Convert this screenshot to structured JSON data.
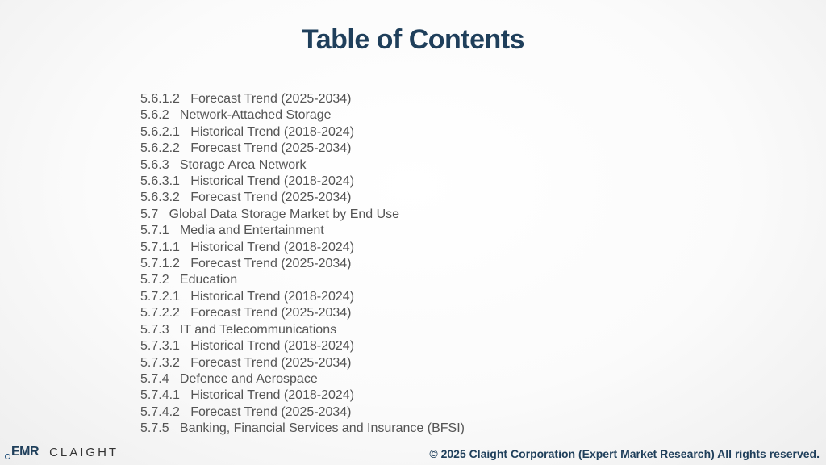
{
  "title": "Table of Contents",
  "toc_items": [
    "5.6.1.2   Forecast Trend (2025-2034)",
    "5.6.2   Network-Attached Storage",
    "5.6.2.1   Historical Trend (2018-2024)",
    "5.6.2.2   Forecast Trend (2025-2034)",
    "5.6.3   Storage Area Network",
    "5.6.3.1   Historical Trend (2018-2024)",
    "5.6.3.2   Forecast Trend (2025-2034)",
    "5.7   Global Data Storage Market by End Use",
    "5.7.1   Media and Entertainment",
    "5.7.1.1   Historical Trend (2018-2024)",
    "5.7.1.2   Forecast Trend (2025-2034)",
    "5.7.2   Education",
    "5.7.2.1   Historical Trend (2018-2024)",
    "5.7.2.2   Forecast Trend (2025-2034)",
    "5.7.3   IT and Telecommunications",
    "5.7.3.1   Historical Trend (2018-2024)",
    "5.7.3.2   Forecast Trend (2025-2034)",
    "5.7.4   Defence and Aerospace",
    "5.7.4.1   Historical Trend (2018-2024)",
    "5.7.4.2   Forecast Trend (2025-2034)",
    "5.7.5   Banking, Financial Services and Insurance (BFSI)"
  ],
  "footer": {
    "logo_emr": "EMR",
    "logo_claight": "CLAIGHT",
    "copyright": "© 2025 Claight Corporation (Expert Market Research) All rights reserved."
  },
  "colors": {
    "title": "#1f3f5b",
    "body_text": "#545454",
    "footer_text": "#1f3f5b"
  }
}
